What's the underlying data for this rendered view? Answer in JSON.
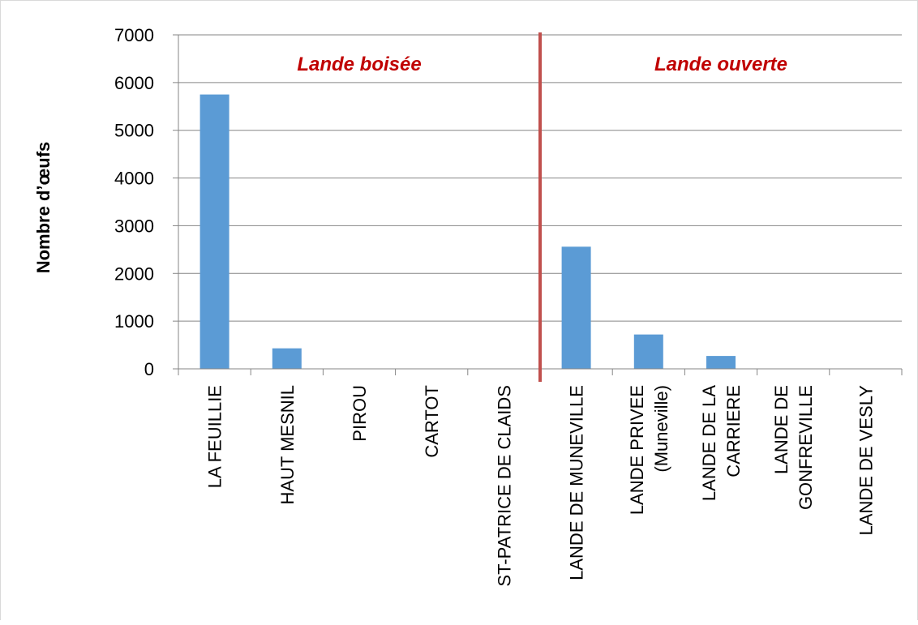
{
  "chart_data": {
    "type": "bar",
    "categories": [
      [
        "LA FEUILLIE"
      ],
      [
        "HAUT MESNIL"
      ],
      [
        "PIROU"
      ],
      [
        "CARTOT"
      ],
      [
        "ST-PATRICE DE CLAIDS"
      ],
      [
        "LANDE DE MUNEVILLE"
      ],
      [
        "LANDE PRIVEE",
        "(Muneville)"
      ],
      [
        "LANDE DE LA",
        "CARRIERE"
      ],
      [
        "LANDE DE",
        "GONFREVILLE"
      ],
      [
        "LANDE DE VESLY"
      ]
    ],
    "values": [
      5750,
      430,
      0,
      0,
      0,
      2560,
      720,
      270,
      0,
      0
    ],
    "ylabel": "Nombre d’œufs",
    "ylim": [
      0,
      7000
    ],
    "yticks": [
      0,
      1000,
      2000,
      3000,
      4000,
      5000,
      6000,
      7000
    ],
    "grid": true,
    "bar_color": "#5b9bd5",
    "divider": {
      "after_category_index": 4,
      "color": "#c0504d"
    },
    "annotations": [
      {
        "text": "Lande boisée",
        "color": "#c00000",
        "group": "left"
      },
      {
        "text": "Lande ouverte",
        "color": "#c00000",
        "group": "right"
      }
    ]
  }
}
